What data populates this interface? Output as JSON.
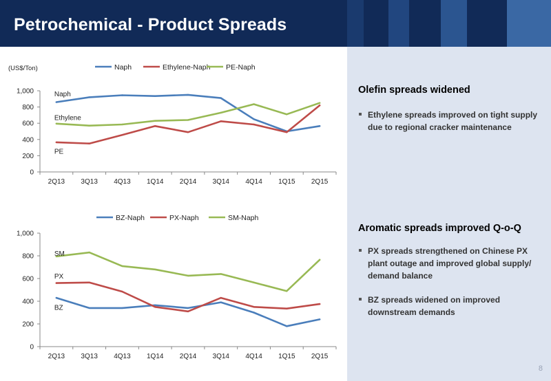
{
  "header": {
    "title": "Petrochemical - Product Spreads",
    "background": "#112a57",
    "accent_blocks": [
      "#1a3a6e",
      "#21467f",
      "#2b5590",
      "#3a68a4"
    ]
  },
  "unit_label": "(US$/Ton)",
  "panel": {
    "background": "#dde4f0",
    "sections": [
      {
        "heading": "Olefin spreads widened",
        "bullets": [
          "Ethylene spreads improved on tight supply due to regional cracker maintenance"
        ]
      },
      {
        "heading": "Aromatic spreads improved Q-o-Q",
        "bullets": [
          "PX spreads strengthened on Chinese PX plant outage and improved global supply/ demand balance",
          "BZ spreads widened on improved downstream demands"
        ]
      }
    ]
  },
  "page_number": "8",
  "chart_data": [
    {
      "type": "line",
      "title": "",
      "categories": [
        "2Q13",
        "3Q13",
        "4Q13",
        "1Q14",
        "2Q14",
        "3Q14",
        "4Q14",
        "1Q15",
        "2Q15"
      ],
      "ylim": [
        0,
        1000
      ],
      "yticks": [
        "0",
        "200",
        "400",
        "600",
        "800",
        "1,000"
      ],
      "grid": false,
      "legend": "top",
      "series": [
        {
          "name": "Naph",
          "color": "#4a7ebb",
          "values": [
            860,
            920,
            945,
            935,
            950,
            910,
            650,
            500,
            565
          ]
        },
        {
          "name": "Ethylene-Naph",
          "color": "#be4b48",
          "values": [
            365,
            350,
            455,
            565,
            490,
            625,
            585,
            490,
            820
          ]
        },
        {
          "name": "PE-Naph",
          "color": "#98b954",
          "values": [
            595,
            570,
            585,
            630,
            640,
            730,
            835,
            710,
            850
          ]
        }
      ],
      "annotations": [
        {
          "text": "Naph",
          "x": "2Q13",
          "y": 965
        },
        {
          "text": "Ethylene",
          "x": "2Q13",
          "y": 675
        },
        {
          "text": "PE",
          "x": "2Q13",
          "y": 260
        }
      ]
    },
    {
      "type": "line",
      "title": "",
      "categories": [
        "2Q13",
        "3Q13",
        "4Q13",
        "1Q14",
        "2Q14",
        "3Q14",
        "4Q14",
        "1Q15",
        "2Q15"
      ],
      "ylim": [
        0,
        1000
      ],
      "yticks": [
        "0",
        "200",
        "400",
        "600",
        "800",
        "1,000"
      ],
      "grid": false,
      "legend": "top",
      "series": [
        {
          "name": "BZ-Naph",
          "color": "#4a7ebb",
          "values": [
            430,
            340,
            340,
            365,
            340,
            390,
            300,
            180,
            240
          ]
        },
        {
          "name": "PX-Naph",
          "color": "#be4b48",
          "values": [
            560,
            565,
            485,
            350,
            310,
            430,
            350,
            335,
            375
          ]
        },
        {
          "name": "SM-Naph",
          "color": "#98b954",
          "values": [
            795,
            830,
            710,
            680,
            625,
            640,
            565,
            490,
            765
          ]
        }
      ],
      "annotations": [
        {
          "text": "SM",
          "x": "2Q13",
          "y": 825
        },
        {
          "text": "PX",
          "x": "2Q13",
          "y": 625
        },
        {
          "text": "BZ",
          "x": "2Q13",
          "y": 350
        }
      ]
    }
  ]
}
